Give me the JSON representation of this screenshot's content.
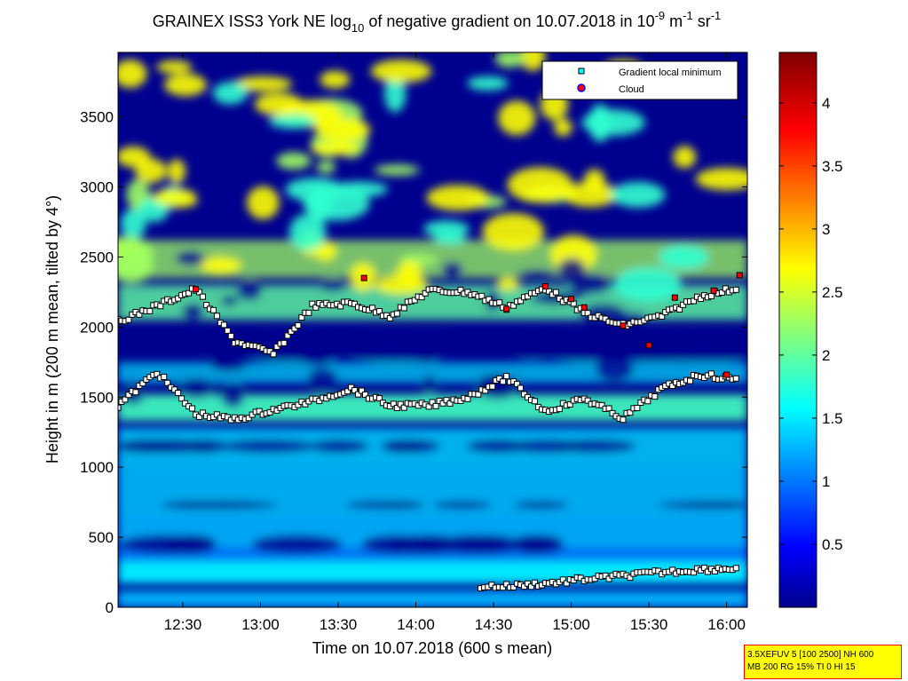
{
  "chart_data": {
    "type": "heatmap",
    "title": "GRAINEX ISS3 York NE log",
    "title_subscript": "10",
    "title_mid": " of negative gradient on 10.07.2018 in 10",
    "title_sup1": "-9",
    "title_unit_m": " m",
    "title_sup2": "-1",
    "title_unit_sr": " sr",
    "title_sup3": "-1",
    "xlabel": "Time on 10.07.2018 (600 s mean)",
    "ylabel": "Height in m (200 m mean, tilted by 4°)",
    "xlim": [
      "12:05",
      "16:08"
    ],
    "ylim": [
      0,
      3960
    ],
    "xticks": [
      "12:30",
      "13:00",
      "13:30",
      "14:00",
      "14:30",
      "15:00",
      "15:30",
      "16:00"
    ],
    "yticks": [
      0,
      500,
      1000,
      1500,
      2000,
      2500,
      3000,
      3500
    ],
    "colorbar": {
      "range": [
        0,
        4.4
      ],
      "ticks": [
        "0.5",
        "1",
        "1.5",
        "2",
        "2.5",
        "3",
        "3.5",
        "4"
      ]
    },
    "legend": {
      "placement": "top-right",
      "items": [
        {
          "label": "Gradient local minimum",
          "marker": "square",
          "color": "#00ffff"
        },
        {
          "label": "Cloud",
          "marker": "circle",
          "color": "#ff0000"
        }
      ]
    },
    "series": [
      {
        "name": "Gradient local minimum",
        "layer": "upper",
        "x": [
          "12:05",
          "12:20",
          "12:35",
          "12:50",
          "13:05",
          "13:20",
          "13:35",
          "13:50",
          "14:05",
          "14:20",
          "14:35",
          "14:50",
          "15:05",
          "15:20",
          "15:35",
          "15:50",
          "16:05"
        ],
        "y": [
          2040,
          2150,
          2270,
          1900,
          1810,
          2150,
          2170,
          2080,
          2260,
          2250,
          2140,
          2280,
          2100,
          2010,
          2080,
          2220,
          2280
        ]
      },
      {
        "name": "Gradient local minimum",
        "layer": "middle",
        "x": [
          "12:05",
          "12:20",
          "12:35",
          "12:50",
          "13:05",
          "13:20",
          "13:35",
          "13:50",
          "14:05",
          "14:20",
          "14:35",
          "14:50",
          "15:05",
          "15:20",
          "15:35",
          "15:50",
          "16:05"
        ],
        "y": [
          1440,
          1680,
          1380,
          1340,
          1410,
          1470,
          1560,
          1440,
          1440,
          1500,
          1640,
          1400,
          1490,
          1350,
          1560,
          1660,
          1620
        ]
      },
      {
        "name": "Gradient local minimum",
        "layer": "low",
        "x": [
          "14:25",
          "14:35",
          "14:50",
          "15:05",
          "15:20",
          "15:35",
          "15:50",
          "16:05"
        ],
        "y": [
          150,
          150,
          170,
          200,
          225,
          250,
          270,
          280
        ]
      },
      {
        "name": "Cloud",
        "x": [
          "12:35",
          "13:40",
          "14:35",
          "14:50",
          "15:00",
          "15:05",
          "15:20",
          "15:30",
          "15:40",
          "15:55",
          "16:00",
          "16:05"
        ],
        "y": [
          2270,
          2350,
          2130,
          2290,
          2200,
          2140,
          2010,
          1870,
          2210,
          2260,
          1660,
          2370
        ]
      }
    ]
  },
  "info_box": {
    "line1": "3.5XEFUV 5 [100 2500] NH 600",
    "line2": "MB 200 RG 15% TI 0 HI 15"
  },
  "colors": {
    "low": "#00008f",
    "mid": "#00ffff",
    "high": "#ffff00",
    "max": "#800000",
    "cloud": "#ff0000"
  }
}
